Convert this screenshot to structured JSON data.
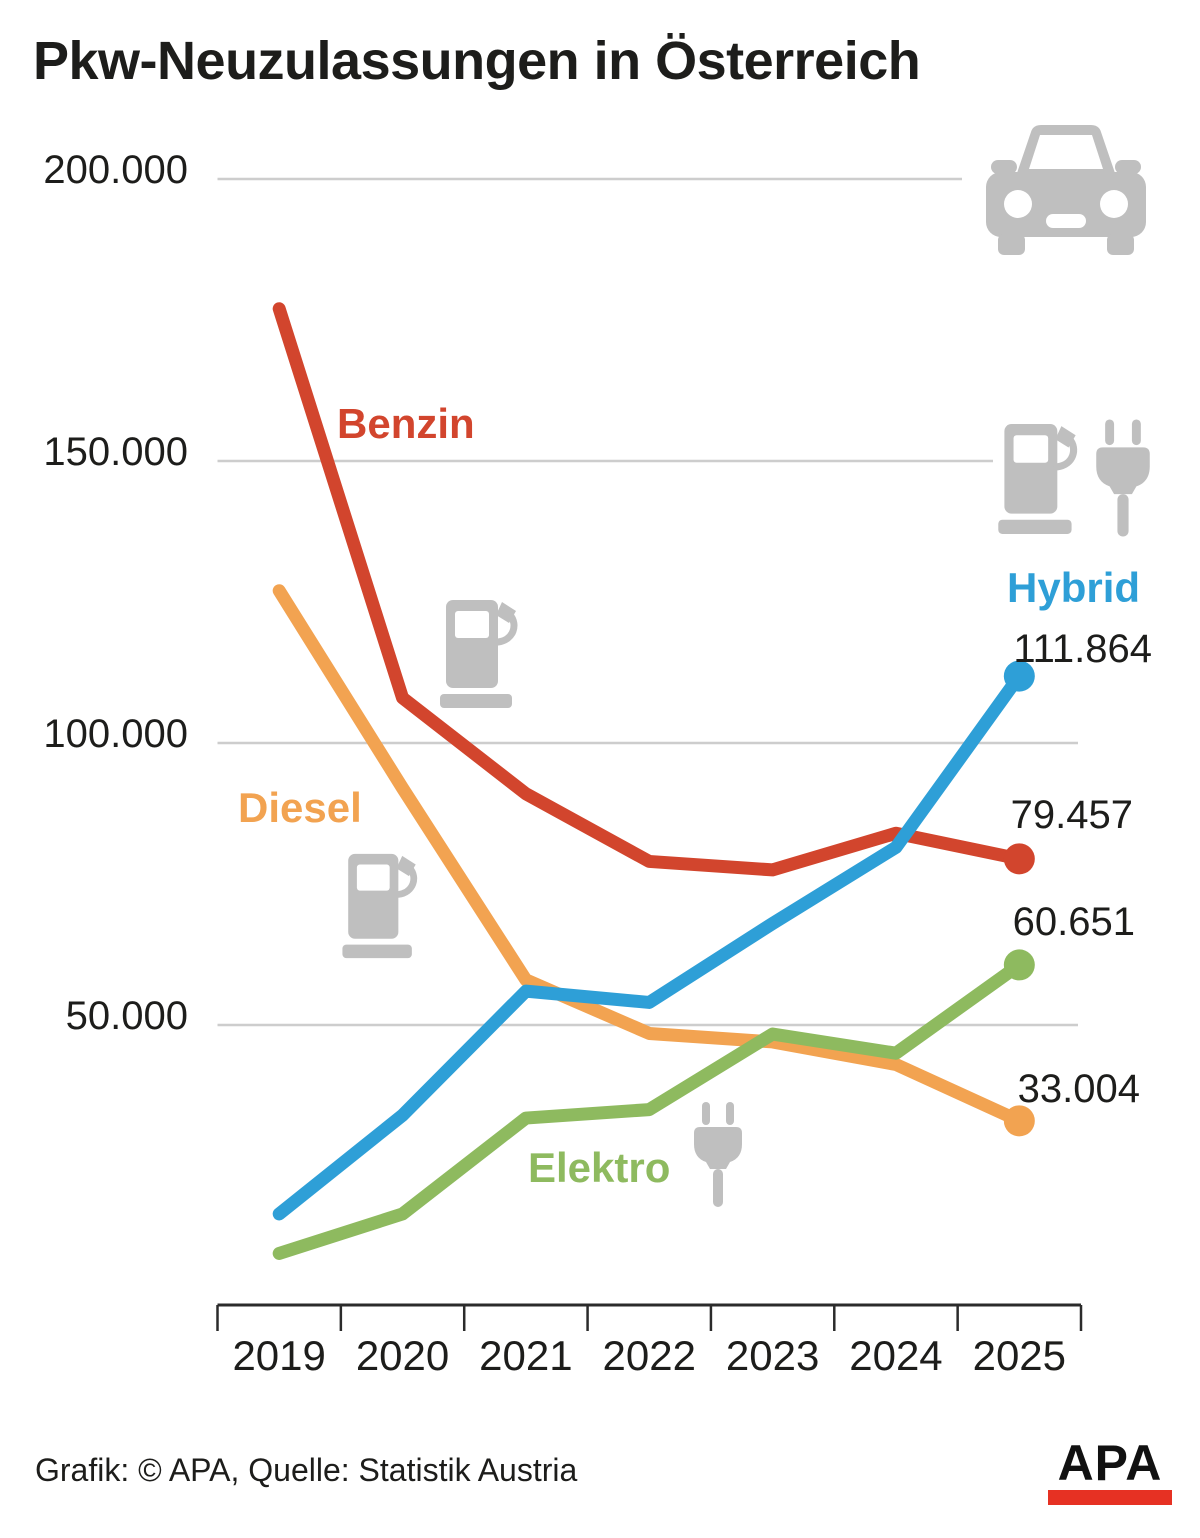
{
  "title": "Pkw-Neuzulassungen in Österreich",
  "source_credit": "Grafik: © APA, Quelle: Statistik Austria",
  "logo": {
    "text": "APA"
  },
  "colors": {
    "benzin": "#d2452d",
    "diesel": "#f2a351",
    "hybrid": "#2e9fd7",
    "elektro": "#8eba5f",
    "icon_gray": "#bfbfbf",
    "gridline": "#cdcdcd",
    "axis": "#2b2b2b",
    "text": "#1d1d1b",
    "logo_red": "#e63123"
  },
  "icons": {
    "header": "car-icon",
    "benzin": "fuel-pump-icon",
    "diesel": "fuel-pump-icon",
    "hybrid": "fuel-pump-and-plug-icon",
    "elektro": "power-plug-icon"
  },
  "chart_data": {
    "type": "line",
    "title": "Pkw-Neuzulassungen in Österreich",
    "categories": [
      "2019",
      "2020",
      "2021",
      "2022",
      "2023",
      "2024",
      "2025"
    ],
    "series": [
      {
        "name": "Benzin",
        "color": "#d2452d",
        "values": [
          177000,
          108000,
          91000,
          79000,
          77500,
          84000,
          79457
        ],
        "end_label": "79.457"
      },
      {
        "name": "Diesel",
        "color": "#f2a351",
        "values": [
          127000,
          92000,
          58000,
          48500,
          47000,
          43000,
          33004
        ],
        "end_label": "33.004"
      },
      {
        "name": "Hybrid",
        "color": "#2e9fd7",
        "values": [
          16500,
          34000,
          56000,
          54000,
          68000,
          81500,
          111864
        ],
        "end_label": "111.864"
      },
      {
        "name": "Elektro",
        "color": "#8eba5f",
        "values": [
          9500,
          16500,
          33500,
          35000,
          48400,
          45000,
          60651
        ],
        "end_label": "60.651"
      }
    ],
    "yticks": [
      {
        "label": "200.000",
        "value": 200000
      },
      {
        "label": "150.000",
        "value": 150000
      },
      {
        "label": "100.000",
        "value": 100000
      },
      {
        "label": "50.000",
        "value": 50000
      }
    ],
    "ylim": [
      0,
      210000
    ],
    "xlabel": "",
    "ylabel": "",
    "grid": "horizontal",
    "legend_position": "inline-labels"
  }
}
